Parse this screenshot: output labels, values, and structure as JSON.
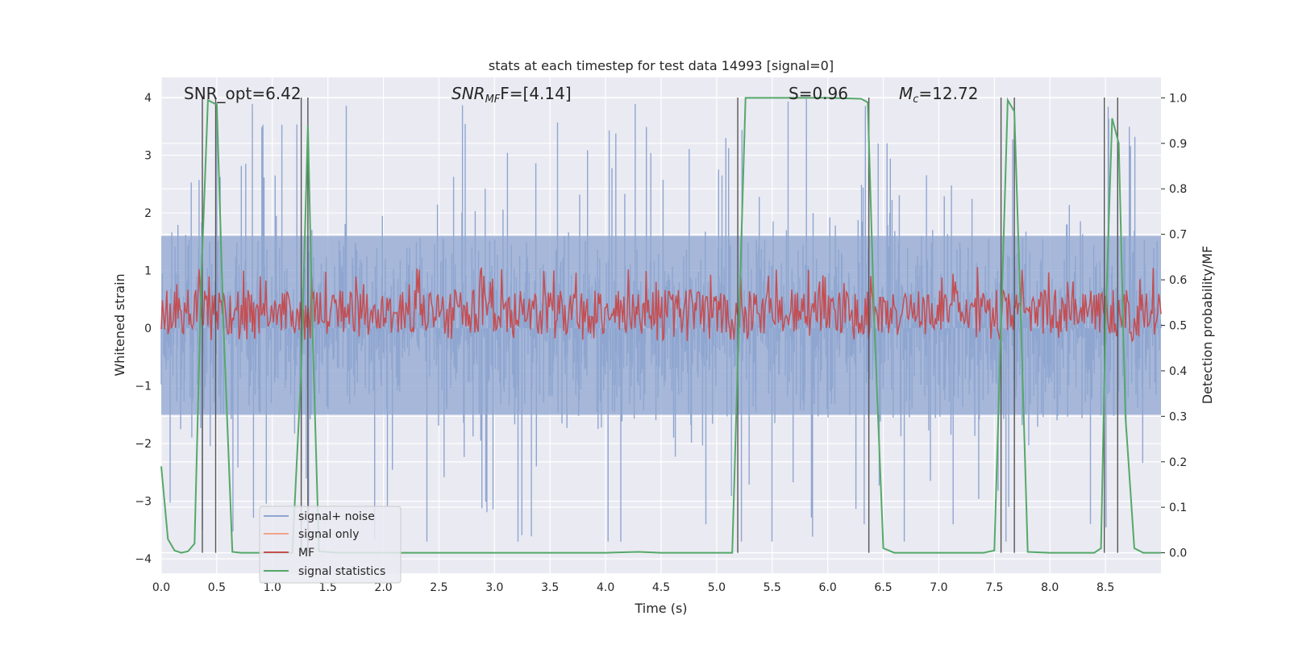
{
  "chart_data": {
    "type": "line",
    "title": "stats at each timestep for test data 14993 [signal=0]",
    "xlabel": "Time (s)",
    "ylabel": "Whitened strain",
    "y2label": "Detection probability/MF",
    "xlim": [
      0,
      9.0
    ],
    "ylim": [
      -4.25,
      4.35
    ],
    "y2lim": [
      -0.045,
      1.045
    ],
    "x_ticks": [
      0.0,
      0.5,
      1.0,
      1.5,
      2.0,
      2.5,
      3.0,
      3.5,
      4.0,
      4.5,
      5.0,
      5.5,
      6.0,
      6.5,
      7.0,
      7.5,
      8.0,
      8.5
    ],
    "x_tick_labels": [
      "0.0",
      "0.5",
      "1.0",
      "1.5",
      "2.0",
      "2.5",
      "3.0",
      "3.5",
      "4.0",
      "4.5",
      "5.0",
      "5.5",
      "6.0",
      "6.5",
      "7.0",
      "7.5",
      "8.0",
      "8.5"
    ],
    "y_ticks": [
      4,
      3,
      2,
      1,
      0,
      -1,
      -2,
      -3,
      -4
    ],
    "y_tick_labels": [
      "4",
      "3",
      "2",
      "1",
      "0",
      "−1",
      "−2",
      "−3",
      "−4"
    ],
    "y2_ticks": [
      1.0,
      0.9,
      0.8,
      0.7,
      0.6,
      0.5,
      0.4,
      0.3,
      0.2,
      0.1,
      0.0
    ],
    "y2_tick_labels": [
      "1.0",
      "0.9",
      "0.8",
      "0.7",
      "0.6",
      "0.5",
      "0.4",
      "0.3",
      "0.2",
      "0.1",
      "0.0"
    ],
    "annotations": {
      "snr_opt": "SNR_opt=6.42",
      "snr_mf_sym": "SNR",
      "snr_mf_sub": "MF",
      "snr_mf_rest": "F=[4.14]",
      "s_stat": "S=0.96",
      "mc_sym": "M",
      "mc_sub": "c",
      "mc_rest": "=12.72"
    },
    "legend": {
      "placement": "lower-left",
      "entries": [
        {
          "label": "signal+ noise",
          "color": "#8fa6d0"
        },
        {
          "label": "signal only",
          "color": "#f0a58a"
        },
        {
          "label": "MF",
          "color": "#c44e52"
        },
        {
          "label": "signal statistics",
          "color": "#55a868"
        }
      ]
    },
    "series": [
      {
        "name": "signal statistics",
        "axis": "right",
        "color": "#55a868",
        "x": [
          0.0,
          0.06,
          0.12,
          0.18,
          0.24,
          0.3,
          0.36,
          0.42,
          0.5,
          0.56,
          0.64,
          0.72,
          0.8,
          1.0,
          1.18,
          1.26,
          1.32,
          1.36,
          1.42,
          1.6,
          2.0,
          3.0,
          4.0,
          4.3,
          4.5,
          5.0,
          5.14,
          5.2,
          5.26,
          5.5,
          6.0,
          6.3,
          6.36,
          6.42,
          6.5,
          6.6,
          7.0,
          7.4,
          7.5,
          7.56,
          7.62,
          7.68,
          7.74,
          7.8,
          8.0,
          8.4,
          8.46,
          8.5,
          8.56,
          8.62,
          8.68,
          8.76,
          8.84,
          9.0
        ],
        "values": [
          0.19,
          0.03,
          0.005,
          0.0,
          0.003,
          0.02,
          0.6,
          0.995,
          0.985,
          0.5,
          0.002,
          0.0,
          0.0,
          0.0,
          0.0,
          0.4,
          0.94,
          0.5,
          0.003,
          0.0,
          0.0,
          0.0,
          0.0,
          0.002,
          0.0,
          0.0,
          0.0,
          0.5,
          1.0,
          1.0,
          1.0,
          0.998,
          0.99,
          0.5,
          0.01,
          0.0,
          0.0,
          0.0,
          0.005,
          0.5,
          0.995,
          0.97,
          0.5,
          0.002,
          0.0,
          0.0,
          0.01,
          0.5,
          0.955,
          0.9,
          0.3,
          0.01,
          0.0,
          0.0
        ]
      },
      {
        "name": "MF",
        "axis": "right",
        "color": "#c44e52",
        "mean": 0.53,
        "spread": 0.035,
        "samples": 900
      },
      {
        "name": "signal+ noise",
        "axis": "left",
        "color": "#8fa6d0",
        "mean": 0.0,
        "spread": 1.35,
        "peak_max": 4.0,
        "peak_min": -3.7,
        "samples": 1800
      }
    ],
    "vertical_markers": [
      0.37,
      0.49,
      1.26,
      1.32,
      5.19,
      6.37,
      7.56,
      7.68,
      8.49,
      8.61
    ]
  }
}
